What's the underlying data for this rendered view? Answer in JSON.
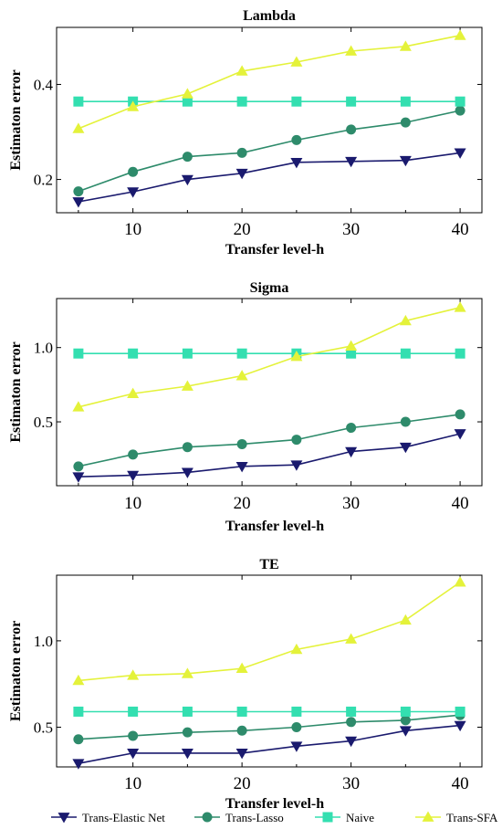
{
  "legend": [
    {
      "name": "Trans-Elastic Net",
      "color": "#1a1a6e",
      "marker": "triangle-down"
    },
    {
      "name": "Trans-Lasso",
      "color": "#2e8b6b",
      "marker": "circle"
    },
    {
      "name": "Naive",
      "color": "#33dfb0",
      "marker": "square"
    },
    {
      "name": "Trans-SFA",
      "color": "#e4f23a",
      "marker": "triangle-up"
    }
  ],
  "chart_data": [
    {
      "type": "line",
      "title": "Lambda",
      "xlabel": "Transfer level-h",
      "ylabel": "Estimaton error",
      "x": [
        5,
        10,
        15,
        20,
        25,
        30,
        35,
        40
      ],
      "xlim": [
        3,
        42
      ],
      "ylim": [
        0.13,
        0.52
      ],
      "xticks": [
        10,
        20,
        30,
        40
      ],
      "yticks": [
        0.2,
        0.4
      ],
      "ytick_labels": [
        "0.2",
        "0.4"
      ],
      "series": [
        {
          "name": "Trans-Elastic Net",
          "values": [
            0.153,
            0.174,
            0.2,
            0.213,
            0.236,
            0.238,
            0.24,
            0.256
          ]
        },
        {
          "name": "Trans-Lasso",
          "values": [
            0.175,
            0.216,
            0.248,
            0.256,
            0.283,
            0.305,
            0.32,
            0.345
          ]
        },
        {
          "name": "Naive",
          "values": [
            0.364,
            0.364,
            0.364,
            0.364,
            0.364,
            0.364,
            0.364,
            0.364
          ]
        },
        {
          "name": "Trans-SFA",
          "values": [
            0.307,
            0.353,
            0.38,
            0.428,
            0.447,
            0.47,
            0.48,
            0.503
          ]
        }
      ]
    },
    {
      "type": "line",
      "title": "Sigma",
      "xlabel": "Transfer level-h",
      "ylabel": "Estimaton error",
      "x": [
        5,
        10,
        15,
        20,
        25,
        30,
        35,
        40
      ],
      "xlim": [
        3,
        42
      ],
      "ylim": [
        0.07,
        1.33
      ],
      "xticks": [
        10,
        20,
        30,
        40
      ],
      "yticks": [
        0.5,
        1.0
      ],
      "ytick_labels": [
        "0.5",
        "1.0"
      ],
      "series": [
        {
          "name": "Trans-Elastic Net",
          "values": [
            0.13,
            0.14,
            0.16,
            0.2,
            0.21,
            0.3,
            0.33,
            0.42
          ]
        },
        {
          "name": "Trans-Lasso",
          "values": [
            0.2,
            0.28,
            0.33,
            0.35,
            0.38,
            0.46,
            0.5,
            0.55
          ]
        },
        {
          "name": "Naive",
          "values": [
            0.96,
            0.96,
            0.96,
            0.96,
            0.96,
            0.96,
            0.96,
            0.96
          ]
        },
        {
          "name": "Trans-SFA",
          "values": [
            0.6,
            0.69,
            0.74,
            0.81,
            0.94,
            1.01,
            1.18,
            1.27
          ]
        }
      ]
    },
    {
      "type": "line",
      "title": "TE",
      "xlabel": "Transfer level-h",
      "ylabel": "Estimaton error",
      "x": [
        5,
        10,
        15,
        20,
        25,
        30,
        35,
        40
      ],
      "xlim": [
        3,
        42
      ],
      "ylim": [
        0.27,
        1.38
      ],
      "xticks": [
        10,
        20,
        30,
        40
      ],
      "yticks": [
        0.5,
        1.0
      ],
      "ytick_labels": [
        "0.5",
        "1.0"
      ],
      "series": [
        {
          "name": "Trans-Elastic Net",
          "values": [
            0.29,
            0.35,
            0.35,
            0.35,
            0.39,
            0.42,
            0.48,
            0.51
          ]
        },
        {
          "name": "Trans-Lasso",
          "values": [
            0.43,
            0.45,
            0.47,
            0.48,
            0.5,
            0.53,
            0.54,
            0.57
          ]
        },
        {
          "name": "Naive",
          "values": [
            0.59,
            0.59,
            0.59,
            0.59,
            0.59,
            0.59,
            0.59,
            0.59
          ]
        },
        {
          "name": "Trans-SFA",
          "values": [
            0.77,
            0.8,
            0.81,
            0.84,
            0.95,
            1.01,
            1.12,
            1.34
          ]
        }
      ]
    }
  ]
}
